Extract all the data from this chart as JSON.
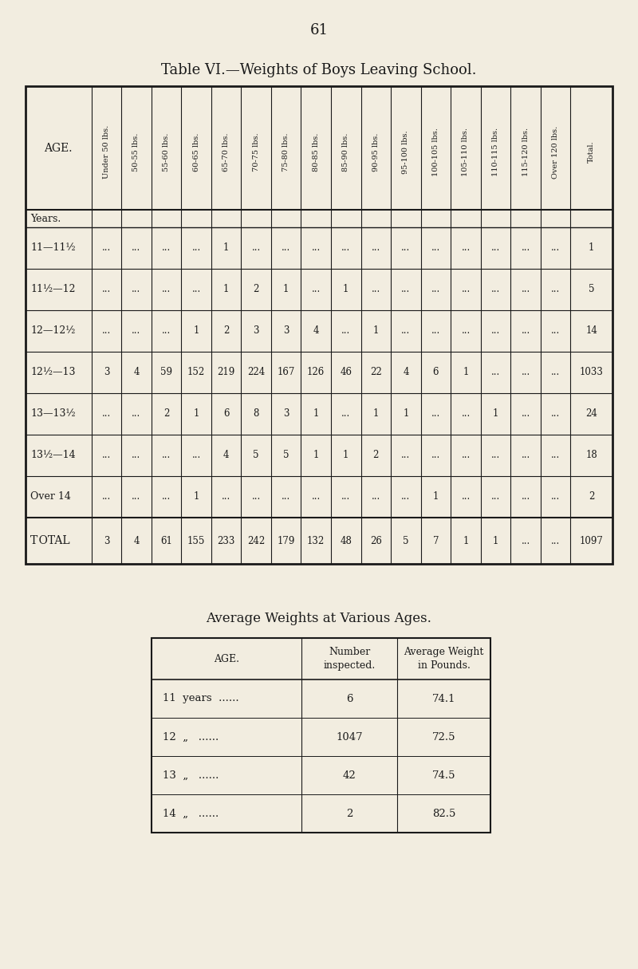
{
  "page_number": "61",
  "title1": "Table VI.—Weights of Boys Leaving School.",
  "title2": "Average Weights at Various Ages.",
  "bg_color": "#f2ede0",
  "table1": {
    "col_headers": [
      "AGE.",
      "Under 50 lbs.",
      "50-55 lbs.",
      "55-60 lbs.",
      "60-65 lbs.",
      "65-70 lbs.",
      "70-75 lbs.",
      "75-80 lbs.",
      "80-85 lbs.",
      "85-90 lbs.",
      "90-95 lbs.",
      "95-100 lbs.",
      "100-105 lbs.",
      "105-110 lbs.",
      "110-115 lbs.",
      "115-120 lbs.",
      "Over 120 lbs.",
      "Total."
    ],
    "row_label_header": "Years.",
    "rows": [
      {
        "label": "11—11½",
        "values": [
          "...",
          "...",
          "...",
          "...",
          "1",
          "...",
          "...",
          "...",
          "...",
          "...",
          "...",
          "...",
          "...",
          "...",
          "...",
          "...",
          "1"
        ]
      },
      {
        "label": "11½—12",
        "values": [
          "...",
          "...",
          "...",
          "...",
          "1",
          "2",
          "1",
          "...",
          "1",
          "...",
          "...",
          "...",
          "...",
          "...",
          "...",
          "...",
          "5"
        ]
      },
      {
        "label": "12—12½",
        "values": [
          "...",
          "...",
          "...",
          "1",
          "2",
          "3",
          "3",
          "4",
          "...",
          "1",
          "...",
          "...",
          "...",
          "...",
          "...",
          "...",
          "14"
        ]
      },
      {
        "label": "12½—13",
        "values": [
          "3",
          "4",
          "59",
          "152",
          "219",
          "224",
          "167",
          "126",
          "46",
          "22",
          "4",
          "6",
          "1",
          "...",
          "...",
          "...",
          "1033"
        ]
      },
      {
        "label": "13—13½",
        "values": [
          "...",
          "...",
          "2",
          "1",
          "6",
          "8",
          "3",
          "1",
          "...",
          "1",
          "1",
          "...",
          "...",
          "1",
          "...",
          "...",
          "24"
        ]
      },
      {
        "label": "13½—14",
        "values": [
          "...",
          "...",
          "...",
          "...",
          "4",
          "5",
          "5",
          "1",
          "1",
          "2",
          "...",
          "...",
          "...",
          "...",
          "...",
          "...",
          "18"
        ]
      },
      {
        "label": "Over 14",
        "values": [
          "...",
          "...",
          "...",
          "1",
          "...",
          "...",
          "...",
          "...",
          "...",
          "...",
          "...",
          "1",
          "...",
          "...",
          "...",
          "...",
          "2"
        ]
      }
    ],
    "total_row": {
      "label": "Total",
      "values": [
        "3",
        "4",
        "61",
        "155",
        "233",
        "242",
        "179",
        "132",
        "48",
        "26",
        "5",
        "7",
        "1",
        "1",
        "...",
        "...",
        "1097"
      ]
    }
  },
  "table2": {
    "col_headers": [
      "AGE.",
      "Number\ninspected.",
      "Average Weight\nin Pounds."
    ],
    "rows": [
      [
        "11  years  ......",
        "6",
        "74.1"
      ],
      [
        "12  „   ......",
        "1047",
        "72.5"
      ],
      [
        "13  „   ......",
        "42",
        "74.5"
      ],
      [
        "14  „   ......",
        "2",
        "82.5"
      ]
    ]
  }
}
